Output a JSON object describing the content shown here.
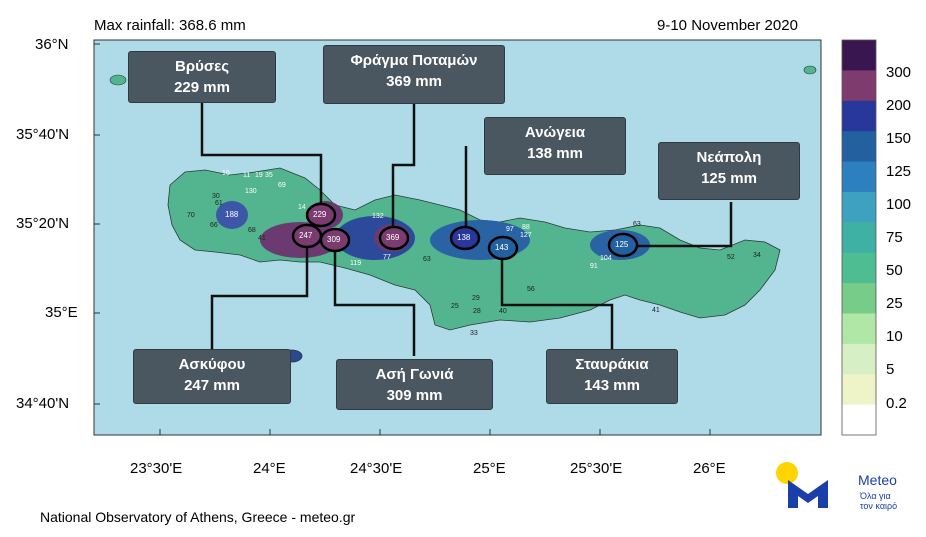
{
  "header": {
    "title": "Max rainfall: 368.6 mm",
    "date": "9-10 November 2020"
  },
  "lat_labels": [
    "36°N",
    "35°40'N",
    "35°20'N",
    "35°E",
    "34°40'N"
  ],
  "lon_labels": [
    "23°30'E",
    "24°E",
    "24°30'E",
    "25°E",
    "25°30'E",
    "26°E"
  ],
  "callouts": [
    {
      "name": "Βρύσες",
      "value": "229 mm"
    },
    {
      "name": "Φράγμα Ποταμών",
      "value": "369 mm"
    },
    {
      "name": "Ανώγεια",
      "value": "138 mm"
    },
    {
      "name": "Νεάπολη",
      "value": "125 mm"
    },
    {
      "name": "Ασκύφου",
      "value": "247 mm"
    },
    {
      "name": "Ασή Γωνιά",
      "value": "309 mm"
    },
    {
      "name": "Σταυράκια",
      "value": "143 mm"
    }
  ],
  "circle_values": [
    "229",
    "247",
    "309",
    "369",
    "138",
    "143",
    "125",
    "188"
  ],
  "station_values": [
    "16",
    "11",
    "19",
    "35",
    "69",
    "130",
    "30",
    "61",
    "70",
    "66",
    "68",
    "41",
    "14",
    "132",
    "119",
    "77",
    "63",
    "97",
    "88",
    "127",
    "56",
    "29",
    "25",
    "28",
    "40",
    "33",
    "104",
    "91",
    "63",
    "52",
    "34",
    "41"
  ],
  "colorbar": {
    "labels": [
      "300",
      "200",
      "150",
      "125",
      "100",
      "75",
      "50",
      "25",
      "10",
      "5",
      "0.2"
    ],
    "colors": [
      "#3a1650",
      "#7e3c6e",
      "#27379a",
      "#23609f",
      "#2d80be",
      "#3ea1c0",
      "#3fb1a4",
      "#4fbd92",
      "#77cc89",
      "#b0e6a6",
      "#d7efc5",
      "#eef3c8",
      "#ffffff"
    ]
  },
  "colors": {
    "sea": "#aedbe7",
    "land": "#52b58f",
    "callout_bg": "#4a5660"
  },
  "credit": "National Observatory of Athens, Greece - meteo.gr",
  "logo": {
    "name": "Meteo",
    "tagline_1": "Όλα για",
    "tagline_2": "τον καιρό"
  }
}
